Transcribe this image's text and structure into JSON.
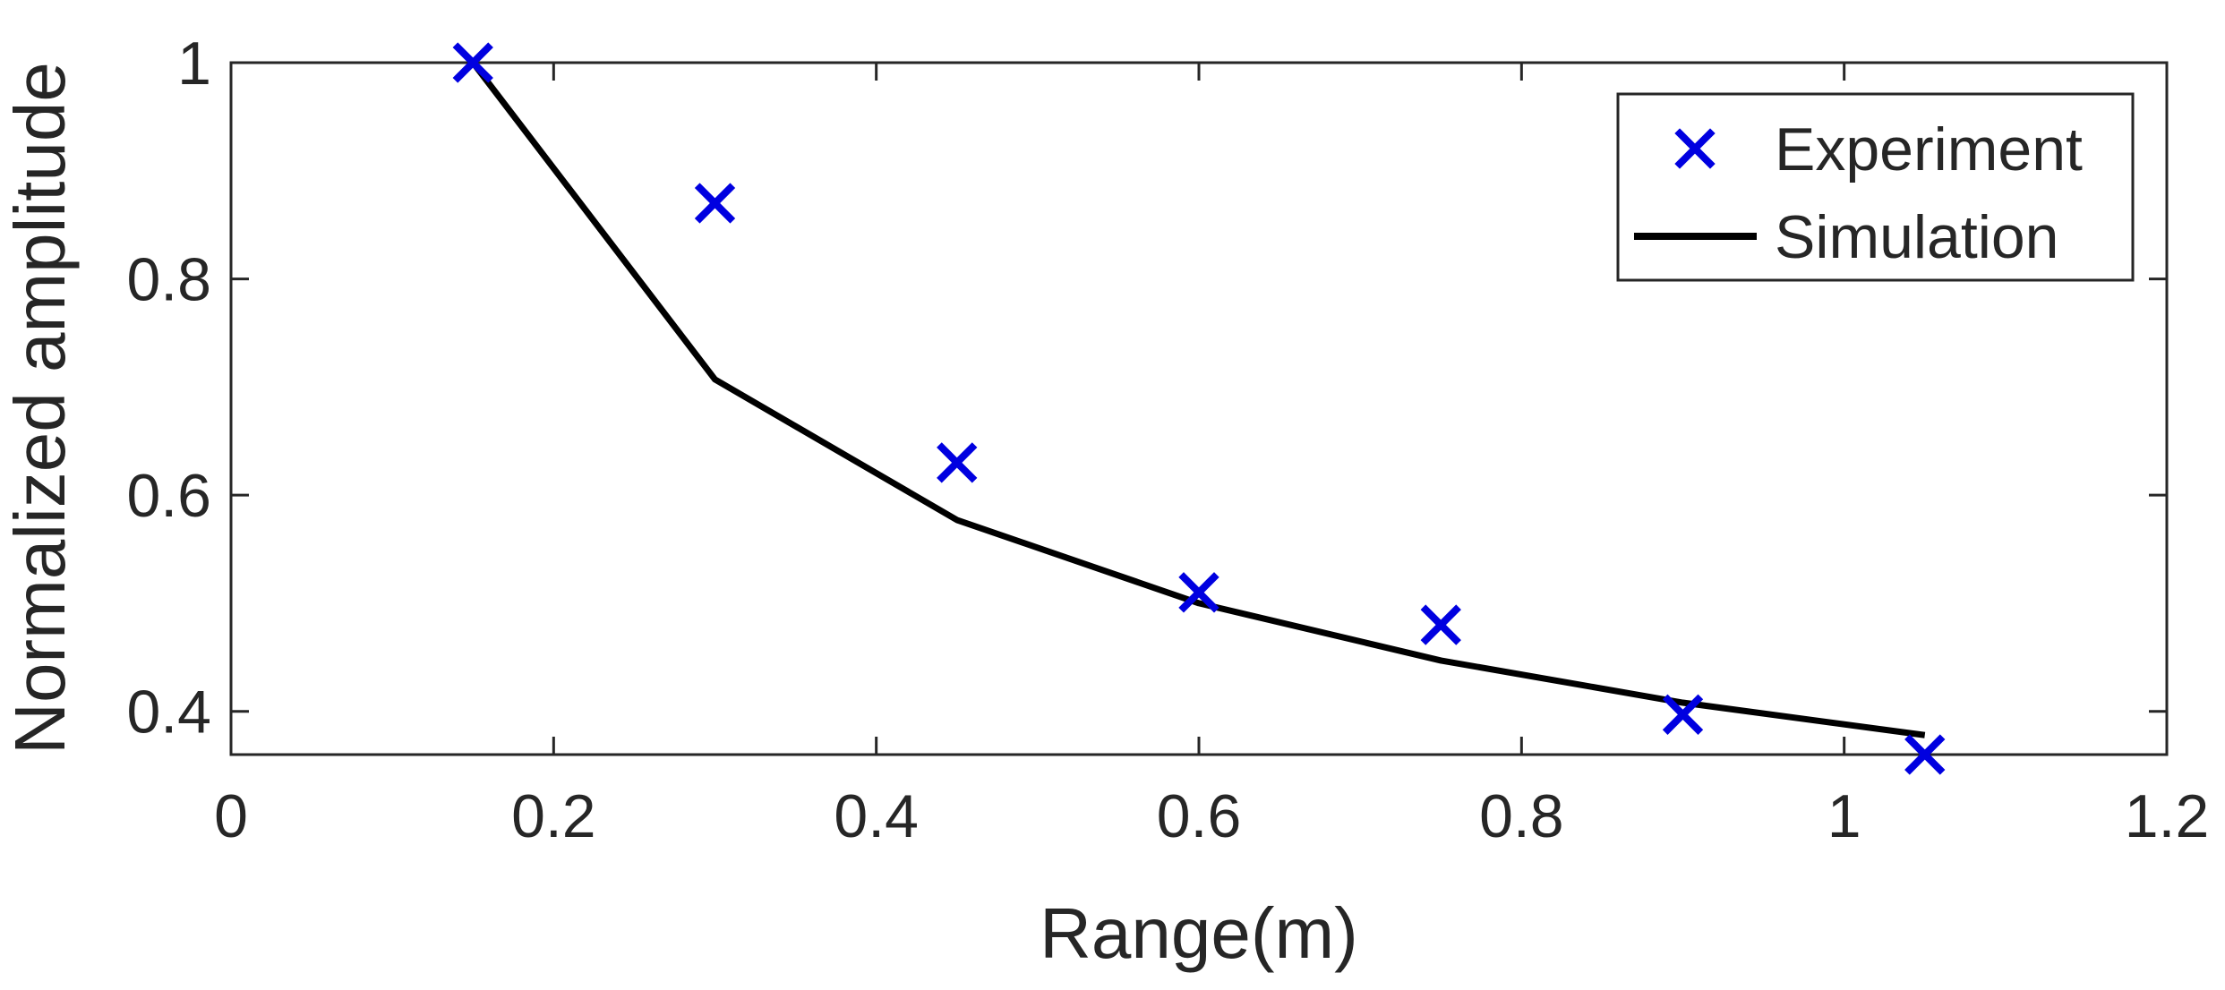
{
  "chart_data": {
    "type": "line",
    "title": "",
    "xlabel": "Range(m)",
    "ylabel": "Normalized amplitude",
    "xlim": [
      0,
      1.2
    ],
    "ylim": [
      0.36,
      1.0
    ],
    "xticks": [
      0,
      0.2,
      0.4,
      0.6,
      0.8,
      1,
      1.2
    ],
    "yticks": [
      0.4,
      0.6,
      0.8,
      1
    ],
    "grid": false,
    "legend_position": "top-right",
    "series": [
      {
        "name": "Experiment",
        "marker": "x",
        "color": "#0000e0",
        "x": [
          0.15,
          0.3,
          0.45,
          0.6,
          0.75,
          0.9,
          1.05
        ],
        "y": [
          1.0,
          0.87,
          0.63,
          0.51,
          0.48,
          0.397,
          0.36
        ]
      },
      {
        "name": "Simulation",
        "marker": "line",
        "color": "#000000",
        "x": [
          0.15,
          0.3,
          0.45,
          0.6,
          0.75,
          0.9,
          1.05
        ],
        "y": [
          1.0,
          0.707,
          0.577,
          0.5,
          0.447,
          0.408,
          0.378
        ]
      }
    ]
  }
}
